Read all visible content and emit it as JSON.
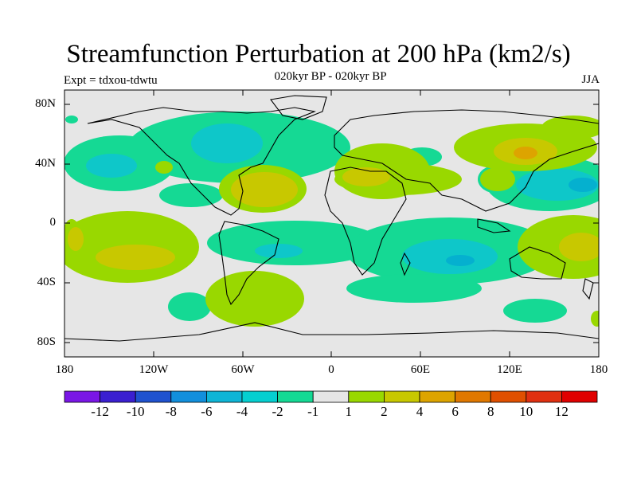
{
  "header": {
    "title": "Streamfunction Perturbation at 200 hPa (km2/s)",
    "subtitle": "020kyr BP - 020kyr BP",
    "experiment": "Expt = tdxou-tdwtu",
    "season": "JJA"
  },
  "axes": {
    "lat_ticks": [
      "80N",
      "40N",
      "0",
      "40S",
      "80S"
    ],
    "lon_ticks": [
      "180",
      "120W",
      "60W",
      "0",
      "60E",
      "120E",
      "180"
    ]
  },
  "colorbar": {
    "labels": [
      "-12",
      "-10",
      "-8",
      "-6",
      "-4",
      "-2",
      "-1",
      "1",
      "2",
      "4",
      "6",
      "8",
      "10",
      "12"
    ],
    "colors": [
      "#7a16e6",
      "#3a1fd0",
      "#1f52cf",
      "#128fdc",
      "#0eb5d6",
      "#05cfd0",
      "#15d994",
      "#e6e6e6",
      "#99d800",
      "#c8c800",
      "#dda400",
      "#e07800",
      "#e05000",
      "#e03010",
      "#e00000"
    ]
  },
  "map": {
    "colors": {
      "land_outline": "#000000",
      "neutral": "#e6e6e6",
      "neg_1": "#15d994",
      "neg_2": "#0ec7c9",
      "pos_1": "#99d800",
      "pos_2": "#c8c800",
      "pos_3": "#dda400"
    }
  }
}
